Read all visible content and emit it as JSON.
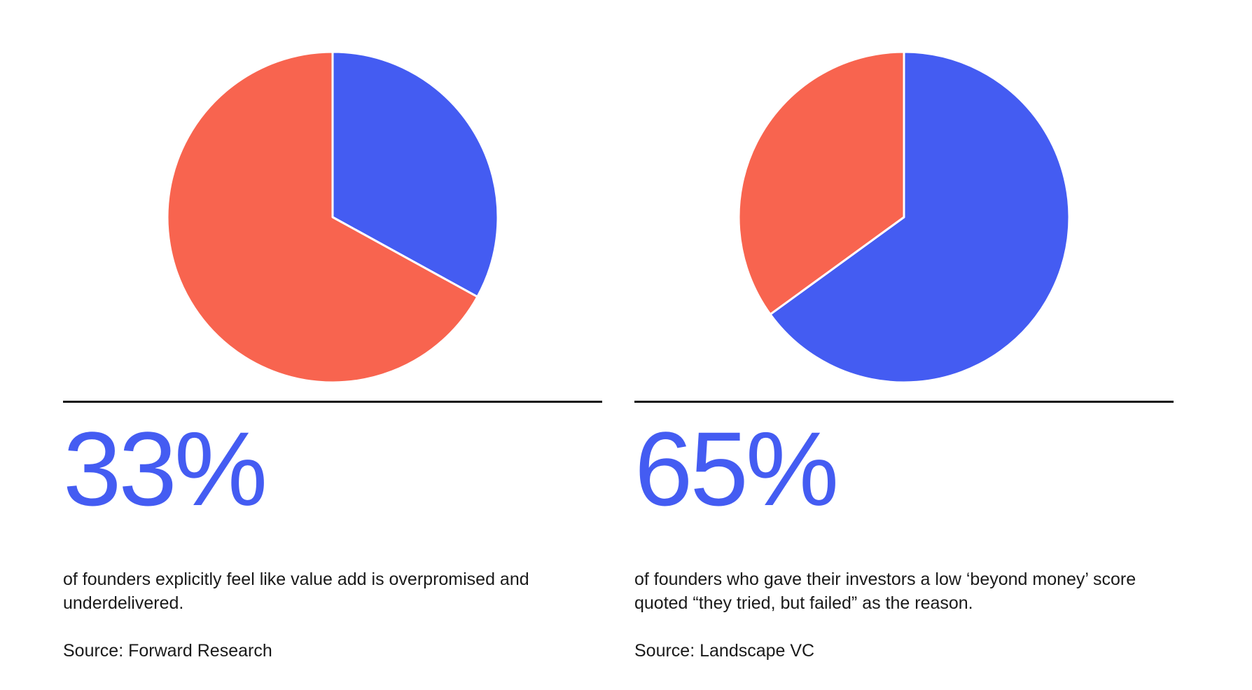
{
  "colors": {
    "accent": "#445cf2",
    "secondary": "#f8644f",
    "rule": "#111111"
  },
  "chart_data": [
    {
      "type": "pie",
      "slices": [
        {
          "label": "",
          "value": 33,
          "color": "#445cf2"
        },
        {
          "label": "",
          "value": 67,
          "color": "#f8644f"
        }
      ],
      "stat": "33%",
      "description": "of founders explicitly feel like value add is overpromised and underdelivered.",
      "source": "Source: Forward Research"
    },
    {
      "type": "pie",
      "slices": [
        {
          "label": "",
          "value": 65,
          "color": "#445cf2"
        },
        {
          "label": "",
          "value": 35,
          "color": "#f8644f"
        }
      ],
      "stat": "65%",
      "description": "of founders who gave their investors a low ‘beyond money’ score quoted “they tried, but failed” as the reason.",
      "source": "Source: Landscape VC"
    }
  ]
}
